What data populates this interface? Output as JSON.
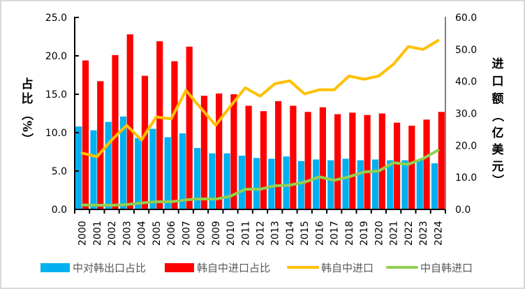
{
  "chart_data": {
    "type": "bar",
    "categories": [
      "2000",
      "2001",
      "2002",
      "2003",
      "2004",
      "2005",
      "2006",
      "2007",
      "2008",
      "2009",
      "2010",
      "2011",
      "2012",
      "2013",
      "2014",
      "2015",
      "2016",
      "2017",
      "2018",
      "2019",
      "2020",
      "2021",
      "2022",
      "2023",
      "2024"
    ],
    "series": [
      {
        "name": "中对韩出口占比",
        "type": "bar",
        "axis": "left",
        "color": "#00b0f0",
        "values": [
          10.8,
          10.3,
          11.4,
          12.1,
          9.3,
          10.5,
          9.4,
          9.9,
          8.0,
          7.3,
          7.3,
          7.0,
          6.7,
          6.6,
          6.9,
          6.3,
          6.5,
          6.4,
          6.6,
          6.4,
          6.5,
          6.4,
          6.4,
          6.5,
          6.0
        ]
      },
      {
        "name": "韩自中进口占比",
        "type": "bar",
        "axis": "left",
        "color": "#ff0000",
        "values": [
          19.4,
          16.7,
          20.1,
          22.8,
          17.4,
          21.9,
          19.3,
          21.2,
          14.8,
          15.1,
          15.0,
          13.5,
          12.8,
          14.1,
          13.5,
          12.7,
          13.3,
          12.4,
          12.6,
          12.3,
          12.5,
          11.3,
          10.9,
          11.7,
          12.7
        ]
      },
      {
        "name": "韩自中进口",
        "type": "line",
        "axis": "right",
        "color": "#ffc000",
        "values": [
          17.6,
          16.5,
          21.7,
          26.3,
          21.7,
          28.9,
          28.3,
          37.2,
          31.7,
          26.3,
          32.2,
          38.0,
          35.4,
          39.3,
          40.2,
          36.1,
          37.4,
          37.4,
          41.7,
          40.7,
          41.7,
          45.4,
          50.9,
          50.0,
          52.8
        ]
      },
      {
        "name": "中自韩进口",
        "type": "line",
        "axis": "right",
        "color": "#92d050",
        "values": [
          1.4,
          1.3,
          1.3,
          1.5,
          2.0,
          2.4,
          2.4,
          3.0,
          3.3,
          3.2,
          4.1,
          6.3,
          6.3,
          7.4,
          7.6,
          8.5,
          10.2,
          9.1,
          10.2,
          11.7,
          12.0,
          14.6,
          14.1,
          15.9,
          18.5
        ]
      }
    ],
    "ylabel": "占比（%）",
    "ylabel_chars": [
      "占",
      "比",
      "（",
      "%",
      "）"
    ],
    "y2label": "进口额（亿美元）",
    "y2label_chars": [
      "进",
      "口",
      "额",
      "（",
      "亿",
      "美",
      "元",
      "）"
    ],
    "ylim": [
      0,
      25
    ],
    "y2lim": [
      0,
      60
    ],
    "yticks": [
      "0.0",
      "5.0",
      "10.0",
      "15.0",
      "20.0",
      "25.0"
    ],
    "y2ticks": [
      "0.0",
      "10.0",
      "20.0",
      "30.0",
      "40.0",
      "50.0",
      "60.0"
    ],
    "grid": false,
    "legend_position": "bottom"
  }
}
